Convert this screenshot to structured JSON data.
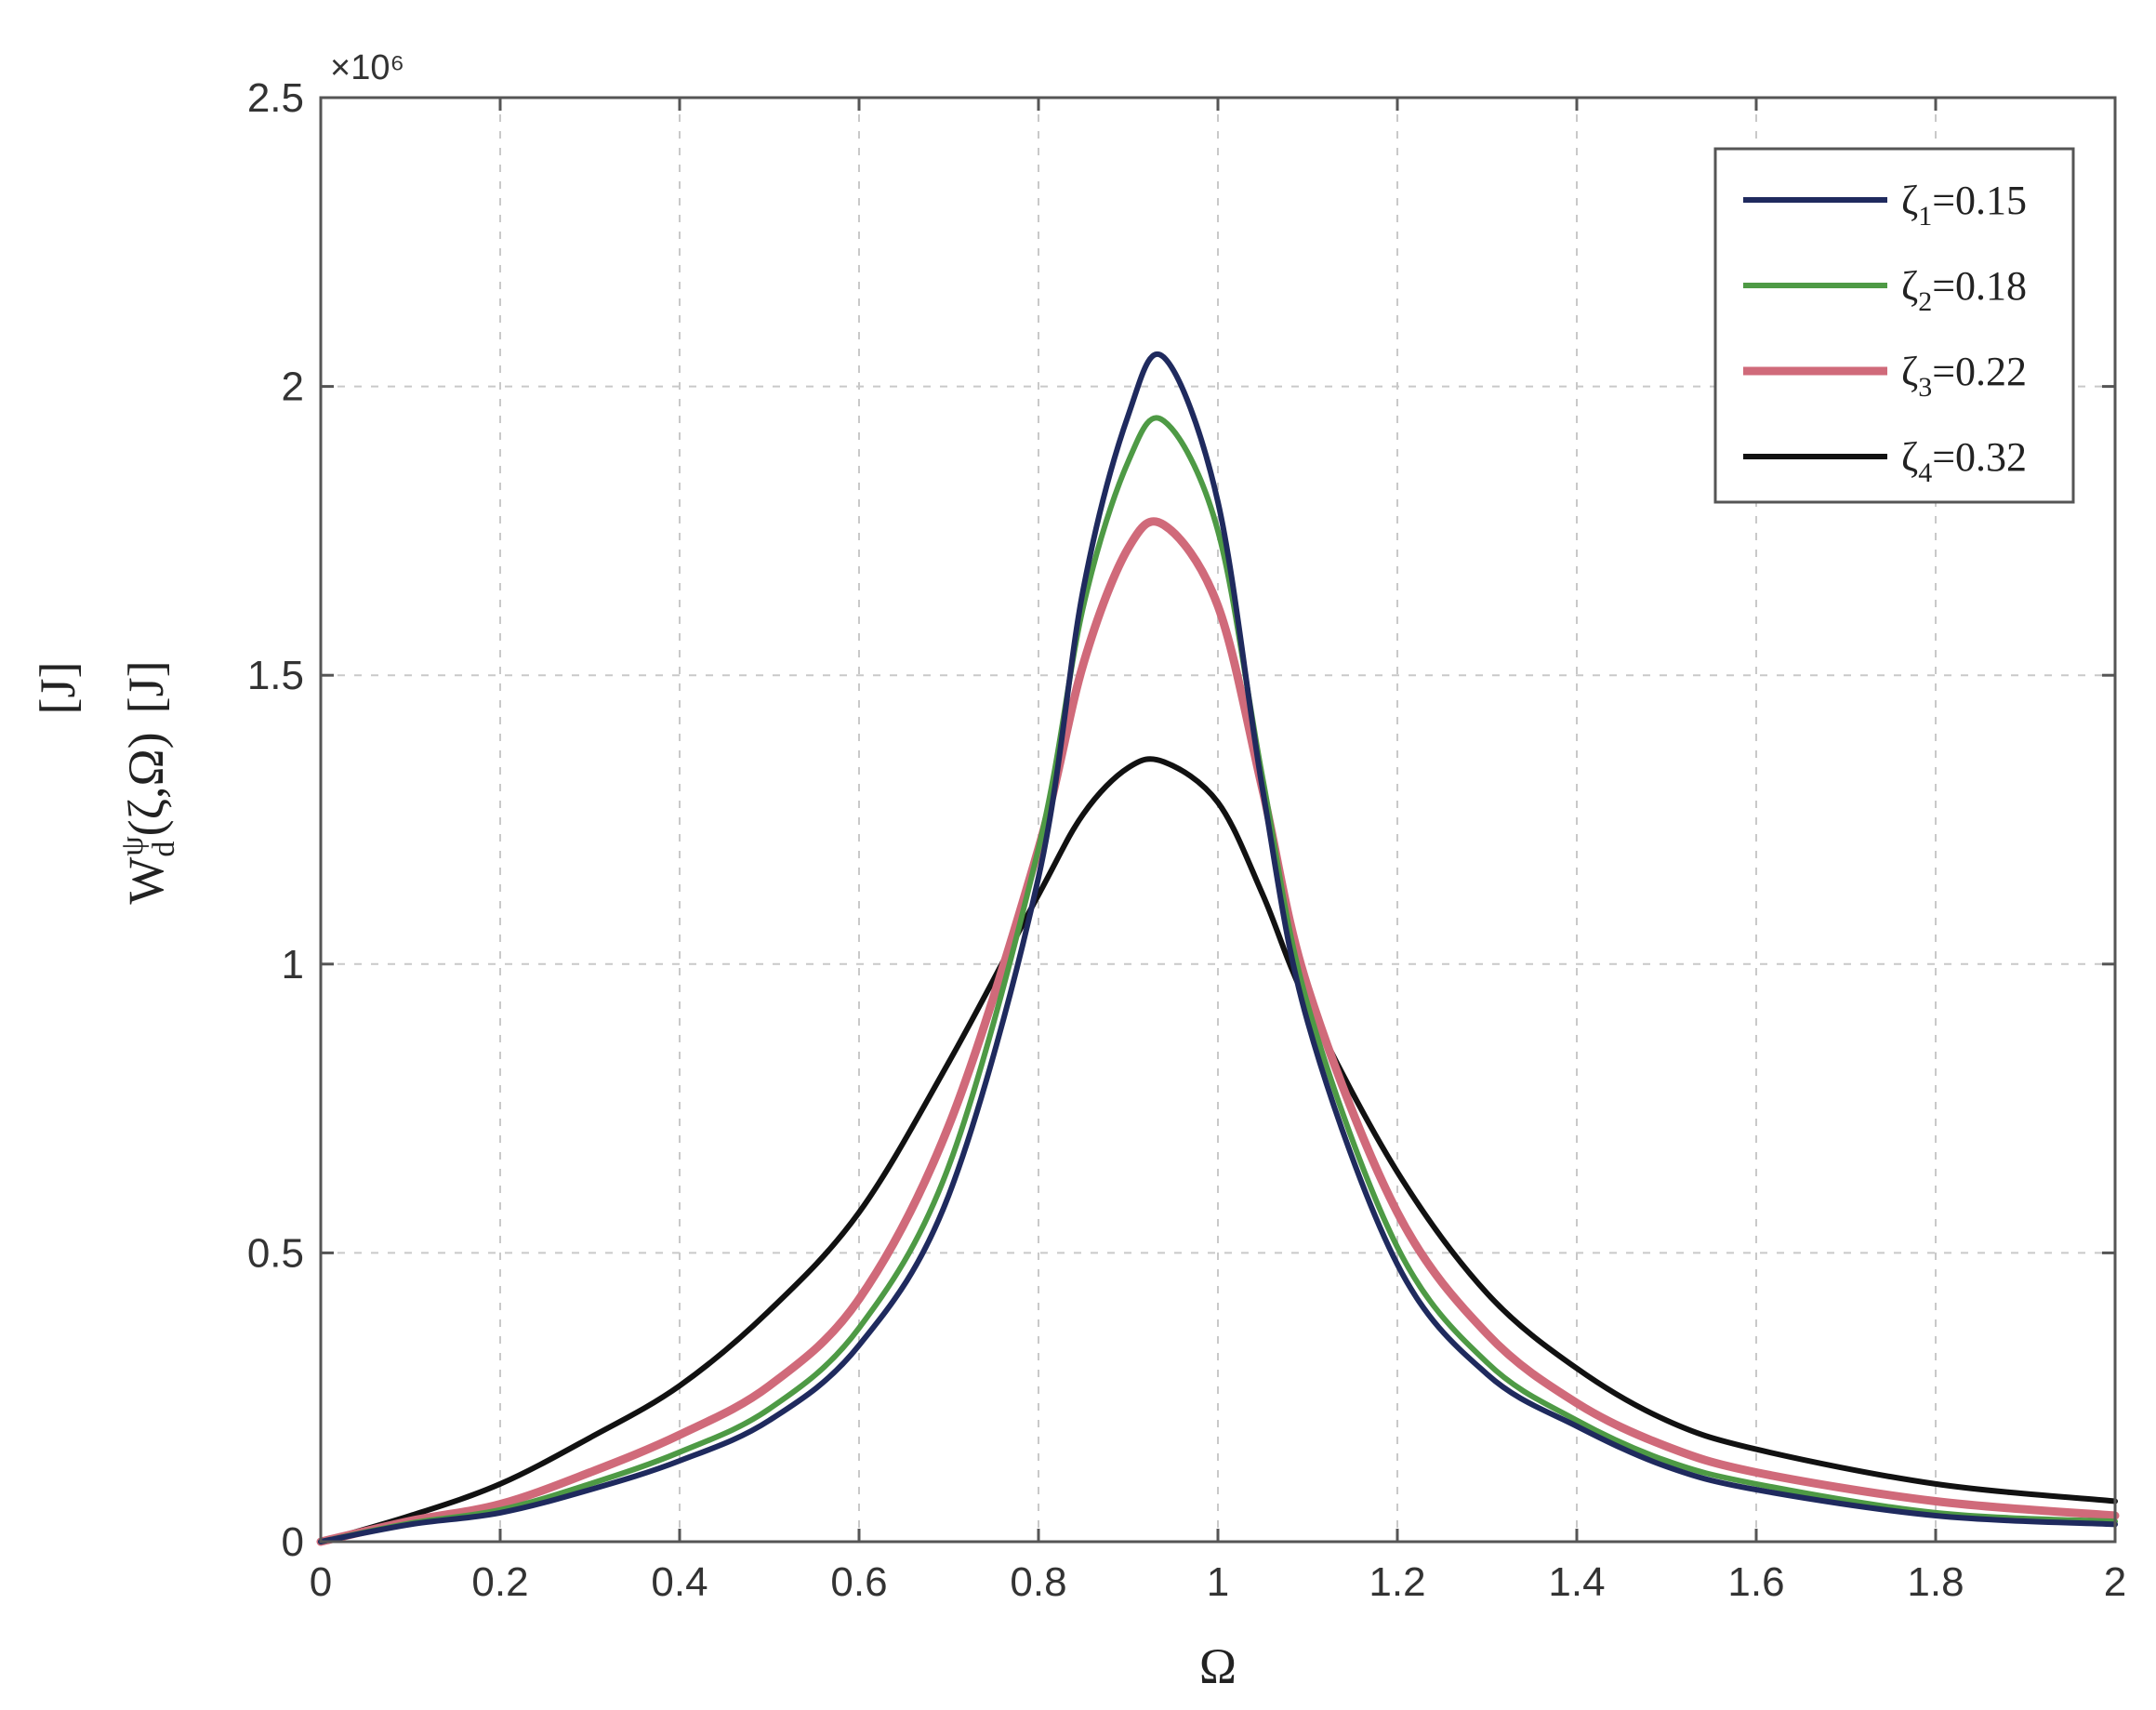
{
  "chart_data": {
    "type": "line",
    "title": "",
    "xlabel": "Ω",
    "ylabel": "W_d^ψ(ζ,Ω)  [J]",
    "ylabel_parts": {
      "main": "W",
      "sub": "d",
      "sup": "ψ",
      "args": "(ζ,Ω)",
      "unit": "[J]"
    },
    "ylabel_extra": "[J]",
    "y_multiplier": "×10⁶",
    "xlim": [
      0,
      2
    ],
    "ylim": [
      0,
      2500000
    ],
    "xticks": [
      0,
      0.2,
      0.4,
      0.6,
      0.8,
      1,
      1.2,
      1.4,
      1.6,
      1.8,
      2
    ],
    "xtick_labels": [
      "0",
      "0.2",
      "0.4",
      "0.6",
      "0.8",
      "1",
      "1.2",
      "1.4",
      "1.6",
      "1.8",
      "2"
    ],
    "yticks": [
      0,
      500000,
      1000000,
      1500000,
      2000000,
      2500000
    ],
    "ytick_labels": [
      "0",
      "0.5",
      "1",
      "1.5",
      "2",
      "2.5"
    ],
    "grid": true,
    "legend_position": "top-right",
    "x": [
      0,
      0.1,
      0.2,
      0.3,
      0.4,
      0.5,
      0.6,
      0.7,
      0.8,
      0.85,
      0.9,
      0.94,
      1.0,
      1.05,
      1.1,
      1.2,
      1.3,
      1.4,
      1.5,
      1.6,
      1.8,
      2.0
    ],
    "series": [
      {
        "name": "ζ₁=0.15",
        "label_base": "ζ",
        "label_sub": "1",
        "label_rest": "=0.15",
        "color": "#1f2a5e",
        "values": [
          0,
          30000,
          50000,
          90000,
          140000,
          210000,
          340000,
          600000,
          1150000,
          1650000,
          1950000,
          2050000,
          1800000,
          1300000,
          900000,
          480000,
          290000,
          200000,
          130000,
          90000,
          45000,
          30000
        ]
      },
      {
        "name": "ζ₂=0.18",
        "label_base": "ζ",
        "label_sub": "2",
        "label_rest": "=0.18",
        "color": "#4e9a45",
        "values": [
          0,
          32000,
          55000,
          100000,
          155000,
          230000,
          370000,
          650000,
          1200000,
          1620000,
          1870000,
          1940000,
          1750000,
          1320000,
          930000,
          510000,
          310000,
          210000,
          140000,
          100000,
          50000,
          35000
        ]
      },
      {
        "name": "ζ₃=0.22",
        "label_base": "ζ",
        "label_sub": "3",
        "label_rest": "=0.22",
        "color": "#d06a7a",
        "values": [
          0,
          36000,
          65000,
          120000,
          185000,
          270000,
          420000,
          720000,
          1200000,
          1520000,
          1720000,
          1760000,
          1620000,
          1300000,
          960000,
          570000,
          360000,
          240000,
          165000,
          120000,
          70000,
          45000
        ]
      },
      {
        "name": "ζ₄=0.32",
        "label_base": "ζ",
        "label_sub": "4",
        "label_rest": "=0.32",
        "color": "#111111",
        "values": [
          0,
          45000,
          100000,
          180000,
          270000,
          400000,
          570000,
          830000,
          1120000,
          1260000,
          1340000,
          1350000,
          1280000,
          1120000,
          930000,
          640000,
          430000,
          300000,
          210000,
          160000,
          100000,
          70000
        ]
      }
    ]
  }
}
